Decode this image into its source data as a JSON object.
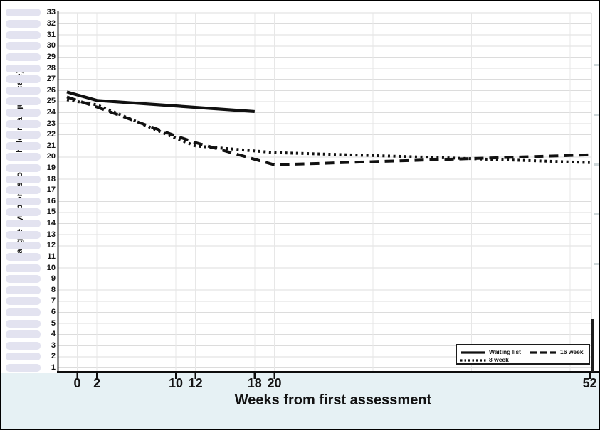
{
  "chart_data": {
    "type": "line",
    "title": "",
    "xlabel": "Weeks from first assessment",
    "ylabel": "Fatigue symptom score (Chalder fatigue scale)",
    "xlim": [
      0,
      52
    ],
    "ylim": [
      1,
      33
    ],
    "x_ticks": [
      0,
      2,
      10,
      12,
      18,
      20,
      52
    ],
    "y_ticks": [
      1,
      2,
      3,
      4,
      5,
      6,
      7,
      8,
      9,
      10,
      11,
      12,
      13,
      14,
      15,
      16,
      17,
      18,
      19,
      20,
      21,
      22,
      23,
      24,
      25,
      26,
      27,
      28,
      29,
      30,
      31,
      32,
      33
    ],
    "grid": {
      "horizontal": "every 1 unit",
      "vertical_weeks": [
        0,
        2,
        10,
        12,
        18,
        20,
        30,
        40,
        50
      ]
    },
    "legend_position": "bottom-right",
    "series": [
      {
        "name": "Waiting list",
        "style": "solid",
        "x": [
          0,
          2,
          18
        ],
        "y": [
          25.6,
          25.1,
          24.1
        ]
      },
      {
        "name": "8 week",
        "style": "dotted",
        "x": [
          0,
          2,
          10,
          12,
          20,
          35,
          52
        ],
        "y": [
          25.0,
          24.7,
          21.7,
          21.0,
          20.4,
          20.0,
          19.5
        ]
      },
      {
        "name": "16 week",
        "style": "dashed",
        "x": [
          0,
          2,
          10,
          12,
          20,
          52
        ],
        "y": [
          25.1,
          24.5,
          21.9,
          21.3,
          19.3,
          20.2
        ]
      }
    ]
  },
  "colors": {
    "line": "#111111",
    "grid_h": "#dcdcdc",
    "grid_v": "#e7e7e7",
    "plot_frame": "#d0d0d0",
    "stripe": "#e3e3f0",
    "bottom_band": "#e6f1f4",
    "axis_y": "#2b2b2b",
    "axis_x": "#0d0d0d"
  }
}
